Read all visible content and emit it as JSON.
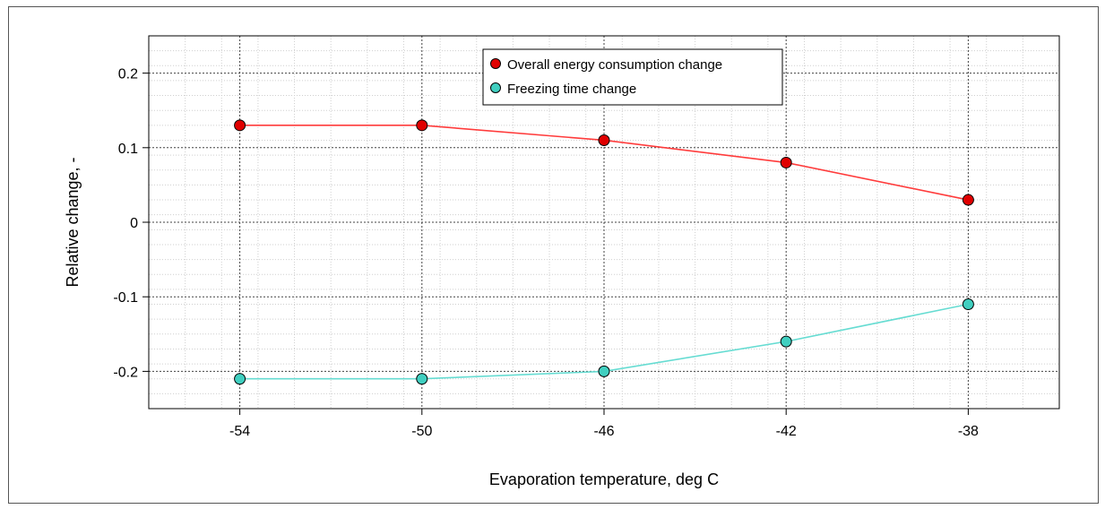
{
  "chart_data": {
    "type": "line",
    "title": "",
    "xlabel": "Evaporation temperature, deg C",
    "ylabel": "Relative change, -",
    "x": [
      -54,
      -50,
      -46,
      -42,
      -38
    ],
    "x_ticks": [
      "-54",
      "-50",
      "-46",
      "-42",
      "-38"
    ],
    "y_ticks": [
      "0.2",
      "0.1",
      "0",
      "-0.1",
      "-0.2"
    ],
    "xlim": [
      -56,
      -36
    ],
    "ylim": [
      -0.25,
      0.25
    ],
    "grid": true,
    "legend_position": "top-center",
    "series": [
      {
        "name": "Overall energy consumption change",
        "values": [
          0.13,
          0.13,
          0.11,
          0.08,
          0.03
        ],
        "color": "#ff3b3b",
        "marker_color": "#e00000"
      },
      {
        "name": "Freezing time change",
        "values": [
          -0.21,
          -0.21,
          -0.2,
          -0.16,
          -0.11
        ],
        "color": "#66dcd2",
        "marker_color": "#40cfc0"
      }
    ]
  }
}
